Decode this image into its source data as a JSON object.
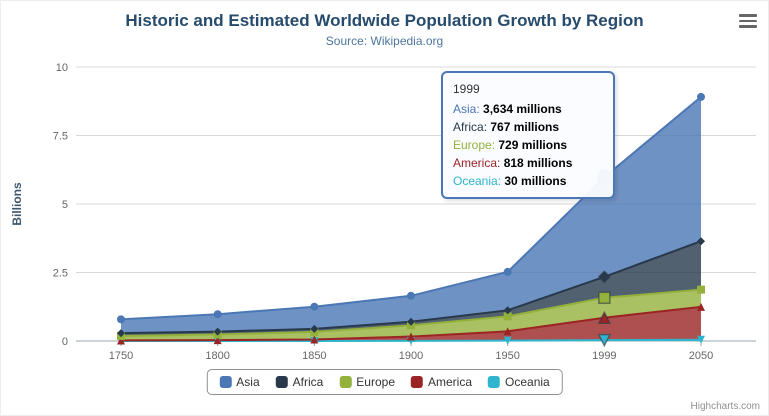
{
  "header": {
    "title": "Historic and Estimated Worldwide Population Growth by Region",
    "subtitle": "Source: Wikipedia.org"
  },
  "credits": {
    "label": "Highcharts.com"
  },
  "tooltip": {
    "header": "1999",
    "category_index": 5,
    "border_color": "#4b77b5",
    "rows": [
      {
        "name": "Asia",
        "value": "3,634 millions"
      },
      {
        "name": "Africa",
        "value": "767 millions"
      },
      {
        "name": "Europe",
        "value": "729 millions"
      },
      {
        "name": "America",
        "value": "818 millions"
      },
      {
        "name": "Oceania",
        "value": "30 millions"
      }
    ]
  },
  "legend": {
    "items": [
      {
        "label": "Asia"
      },
      {
        "label": "Africa"
      },
      {
        "label": "Europe"
      },
      {
        "label": "America"
      },
      {
        "label": "Oceania"
      }
    ]
  },
  "chart_data": {
    "type": "area",
    "stacking": "normal",
    "title": "Historic and Estimated Worldwide Population Growth by Region",
    "subtitle": "Source: Wikipedia.org",
    "xlabel": "",
    "ylabel": "Billions",
    "ylim": [
      0,
      10
    ],
    "yticks": [
      0,
      2.5,
      5,
      7.5,
      10
    ],
    "unit": "millions",
    "grid": "horizontal",
    "legend_position": "bottom",
    "categories": [
      "1750",
      "1800",
      "1850",
      "1900",
      "1950",
      "1999",
      "2050"
    ],
    "series": [
      {
        "name": "Asia",
        "color": "#4b77b5",
        "marker": "circle",
        "values_millions": [
          502,
          635,
          809,
          947,
          1402,
          3634,
          5268
        ]
      },
      {
        "name": "Africa",
        "color": "#27394b",
        "marker": "diamond",
        "values_millions": [
          106,
          107,
          111,
          133,
          221,
          767,
          1766
        ]
      },
      {
        "name": "Europe",
        "color": "#94b13c",
        "marker": "square",
        "values_millions": [
          163,
          203,
          276,
          408,
          547,
          729,
          628
        ]
      },
      {
        "name": "America",
        "color": "#9b2424",
        "marker": "triangle",
        "values_millions": [
          18,
          31,
          54,
          156,
          339,
          818,
          1201
        ]
      },
      {
        "name": "Oceania",
        "color": "#2eb5cd",
        "marker": "triangle-down",
        "values_millions": [
          2,
          2,
          2,
          6,
          13,
          30,
          46
        ]
      }
    ]
  }
}
